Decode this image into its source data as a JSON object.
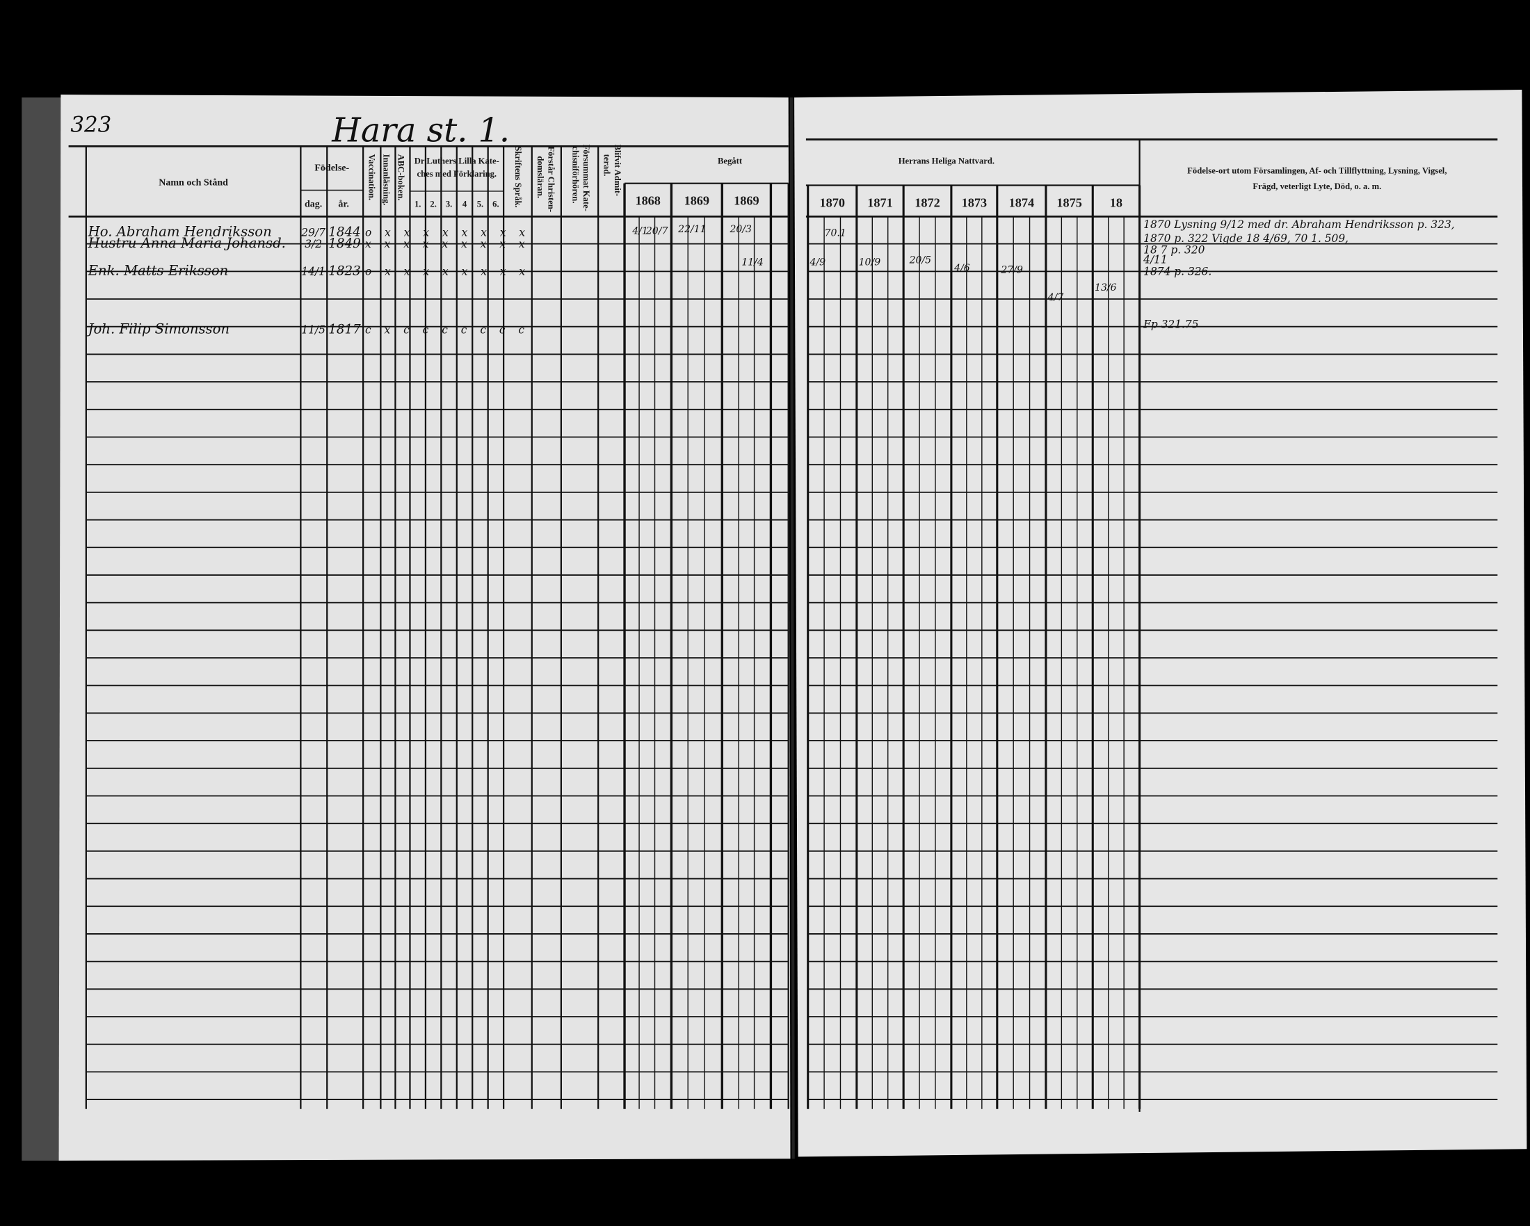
{
  "page_number": "323",
  "village_title": "Hara st. 1.",
  "headers": {
    "name": "Namn och Stånd",
    "birth": "Födelse-",
    "birth_day": "dag.",
    "birth_year": "år.",
    "vaccination": "Vaccination.",
    "innanlasning": "Innanläsning.",
    "abc": "ABC-boken.",
    "catechism_line1": "Dr Luthers Lilla Kate-",
    "catechism_line2": "ches med Förklaring.",
    "catechism_parts": [
      "1.",
      "2.",
      "3.",
      "4",
      "5.",
      "6."
    ],
    "skriftens": "Skriftens Språk.",
    "forstar_line1": "Förstår Christen-",
    "forstar_line2": "domsläran.",
    "forsummat_line1": "Försummat Kate-",
    "forsummat_line2": "chisniförhören.",
    "admitterad_line1": "Blifvit Admit-",
    "admitterad_line2": "terad.",
    "begatt": "Begått",
    "nattvard": "Herrans Heliga Nattvard.",
    "remarks_line1": "Födelse-ort utom Församlingen, Af- och Tillflyttning, Lysning, Vigsel,",
    "remarks_line2": "Frägd, veterligt Lyte, Död, o. a. m."
  },
  "left_years": [
    "1868",
    "1869",
    "1869"
  ],
  "right_years": [
    "1870",
    "1871",
    "1872",
    "1873",
    "1874",
    "1875",
    "18"
  ],
  "entries": [
    {
      "name": "Ho. Abraham Hendriksson",
      "day": "29/7",
      "year": "1844",
      "marks": "o x x x x x x x x"
    },
    {
      "name": "Hustru Anna Maria Johansd.",
      "day": "3/2",
      "year": "1849",
      "marks": "x x x x x x x x x"
    },
    {
      "name": "Enk. Matts Eriksson",
      "day": "14/1",
      "year": "1823",
      "marks": "o x x x x x x x x"
    },
    {
      "name": "Joh. Filip Simonsson",
      "day": "11/5",
      "year": "1817",
      "marks": "c x c c c c c c c"
    }
  ],
  "communion_marks": {
    "r1_1868": "4/1",
    "r1_1868b": "20/7",
    "r1_1869": "22/11",
    "r1_1869b": "20/3",
    "r1_1870": "70.1",
    "r2_1869": "11/4",
    "r2_1870": "4/9",
    "r2_1871": "10/9",
    "r2_1872": "20/5",
    "r2_1873": "4/6",
    "r2_1874": "27/9",
    "r3_1875": "4/7",
    "r3_18": "13/6"
  },
  "remarks": [
    "1870 Lysning 9/12 med dr. Abraham Hendriksson p. 323,",
    "1870 p. 322 Vigde 18 4/69, 70 1. 509,",
    "18 7 p. 320",
    "4/11",
    "1874 p. 326.",
    "Fp 321.75"
  ]
}
